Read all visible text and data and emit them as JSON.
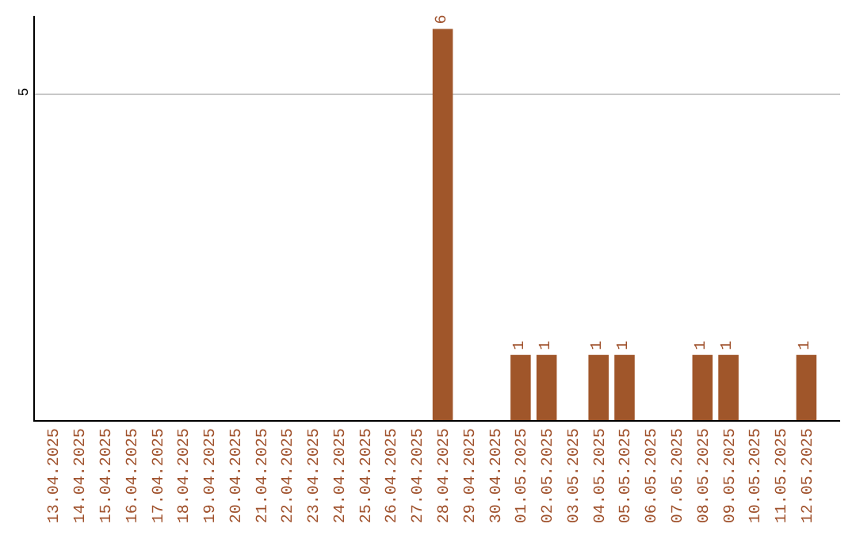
{
  "chart_data": {
    "type": "bar",
    "categories": [
      "13.04.2025",
      "14.04.2025",
      "15.04.2025",
      "16.04.2025",
      "17.04.2025",
      "18.04.2025",
      "19.04.2025",
      "20.04.2025",
      "21.04.2025",
      "22.04.2025",
      "23.04.2025",
      "24.04.2025",
      "25.04.2025",
      "26.04.2025",
      "27.04.2025",
      "28.04.2025",
      "29.04.2025",
      "30.04.2025",
      "01.05.2025",
      "02.05.2025",
      "03.05.2025",
      "04.05.2025",
      "05.05.2025",
      "06.05.2025",
      "07.05.2025",
      "08.05.2025",
      "09.05.2025",
      "10.05.2025",
      "11.05.2025",
      "12.05.2025"
    ],
    "values": [
      null,
      null,
      null,
      null,
      null,
      null,
      null,
      null,
      null,
      null,
      null,
      null,
      null,
      null,
      null,
      6,
      null,
      null,
      1,
      1,
      null,
      1,
      1,
      null,
      null,
      1,
      1,
      null,
      null,
      1
    ],
    "data_labels": true,
    "color": "#a0562a",
    "ylim": [
      0,
      6.2
    ],
    "yticks": [
      5
    ],
    "grid": "y",
    "legend": false
  }
}
